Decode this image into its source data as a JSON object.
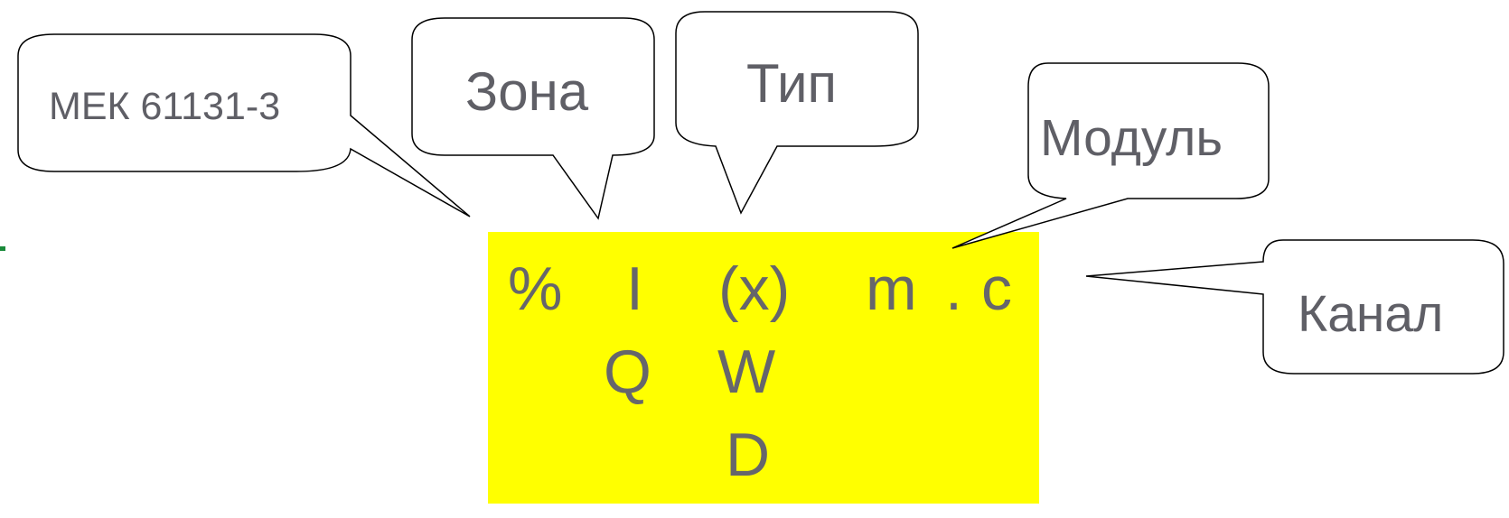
{
  "callouts": {
    "standard": "МЕК 61131-3",
    "zone": "Зона",
    "type": "Тип",
    "module": "Модуль",
    "channel": "Канал"
  },
  "address": {
    "prefix": "%",
    "zone_i": "I",
    "zone_q": "Q",
    "type_x": "(x)",
    "type_w": "W",
    "type_d": "D",
    "module": "m",
    "dot": ".",
    "channel": "c"
  },
  "colors": {
    "highlight": "#ffff00",
    "text": "#5f5f66",
    "accent_mark": "#1a8a3a"
  }
}
